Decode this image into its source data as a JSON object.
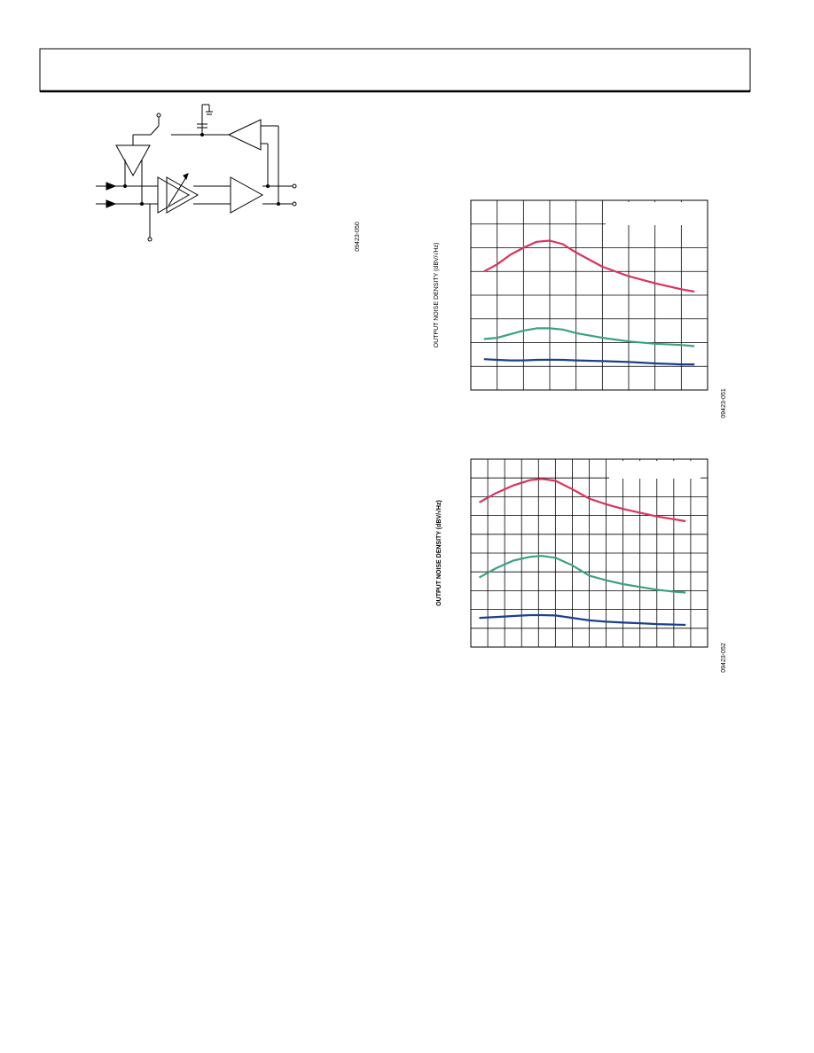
{
  "diagram": {
    "label": "09423-050"
  },
  "chart_data": [
    {
      "type": "line",
      "y_label": "OUTPUT NOISE DENSITY (dBV/√Hz)",
      "annotation": "09423-051",
      "xlim": [
        0,
        9
      ],
      "ylim": [
        0,
        8
      ],
      "xticks": [
        1,
        2,
        3,
        4,
        5,
        6,
        7,
        8
      ],
      "yticks": [
        1,
        2,
        3,
        4,
        5,
        6,
        7
      ],
      "grid": true,
      "x": [
        0.5,
        1,
        1.5,
        2,
        2.5,
        3,
        3.5,
        4,
        5,
        6,
        7,
        8,
        8.5
      ],
      "series": [
        {
          "color": "#d9335b",
          "values": [
            5.0,
            5.3,
            5.7,
            6.0,
            6.25,
            6.3,
            6.15,
            5.8,
            5.2,
            4.8,
            4.5,
            4.25,
            4.15
          ]
        },
        {
          "color": "#3aa37a",
          "values": [
            2.15,
            2.2,
            2.35,
            2.5,
            2.6,
            2.6,
            2.55,
            2.4,
            2.2,
            2.05,
            1.95,
            1.9,
            1.85
          ]
        },
        {
          "color": "#1c3f8c",
          "values": [
            1.3,
            1.27,
            1.25,
            1.25,
            1.27,
            1.28,
            1.27,
            1.25,
            1.22,
            1.18,
            1.12,
            1.08,
            1.08
          ]
        }
      ]
    },
    {
      "type": "line",
      "y_label": "OUTPUT NOISE DENSITY (dBV/√Hz)",
      "annotation": "09423-052",
      "xlim": [
        0,
        14
      ],
      "ylim": [
        0,
        10
      ],
      "xticks": [
        1,
        2,
        3,
        4,
        5,
        6,
        7,
        8,
        9,
        10,
        11,
        12,
        13
      ],
      "yticks": [
        1,
        2,
        3,
        4,
        5,
        6,
        7,
        8,
        9
      ],
      "grid": true,
      "x": [
        0.5,
        1.5,
        2.5,
        3.5,
        4.2,
        5,
        6,
        7,
        8,
        9,
        10,
        11,
        12,
        12.7
      ],
      "series": [
        {
          "color": "#d9335b",
          "values": [
            7.7,
            8.2,
            8.6,
            8.88,
            8.95,
            8.85,
            8.4,
            7.9,
            7.6,
            7.35,
            7.15,
            6.95,
            6.8,
            6.7
          ]
        },
        {
          "color": "#3aa37a",
          "values": [
            3.7,
            4.2,
            4.6,
            4.8,
            4.85,
            4.75,
            4.35,
            3.8,
            3.55,
            3.35,
            3.2,
            3.05,
            2.95,
            2.9
          ]
        },
        {
          "color": "#1c3f8c",
          "values": [
            1.55,
            1.6,
            1.65,
            1.7,
            1.7,
            1.68,
            1.55,
            1.42,
            1.35,
            1.3,
            1.27,
            1.22,
            1.2,
            1.18
          ]
        }
      ]
    }
  ]
}
